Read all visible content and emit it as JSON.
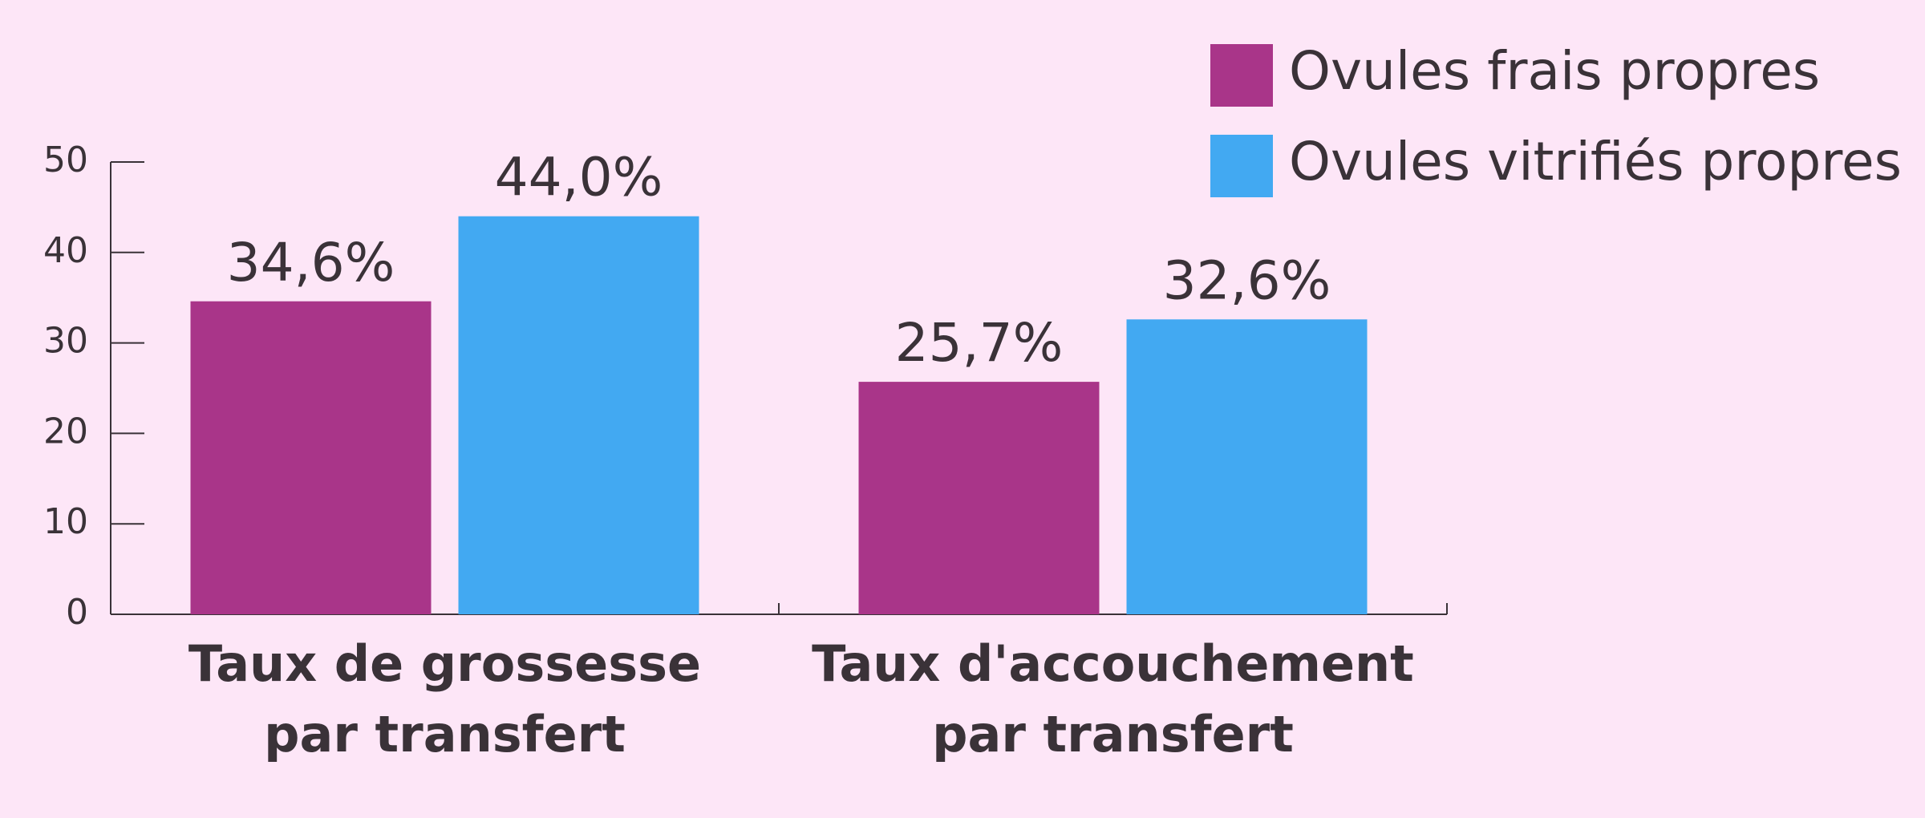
{
  "chart_data": {
    "type": "bar",
    "categories": [
      [
        "Taux de grossesse",
        "par transfert"
      ],
      [
        "Taux d'accouchement",
        "par transfert"
      ]
    ],
    "series": [
      {
        "name": "Ovules frais propres",
        "color": "#a93589",
        "values": [
          34.6,
          25.7
        ],
        "value_labels": [
          "34,6%",
          "25,7%"
        ]
      },
      {
        "name": "Ovules vitrifiés propres",
        "color": "#42a9f2",
        "values": [
          44.0,
          32.6
        ],
        "value_labels": [
          "44,0%",
          "32,6%"
        ]
      }
    ],
    "ylim": [
      0,
      50
    ],
    "yticks": [
      0,
      10,
      20,
      30,
      40,
      50
    ],
    "legend": "top-right"
  }
}
